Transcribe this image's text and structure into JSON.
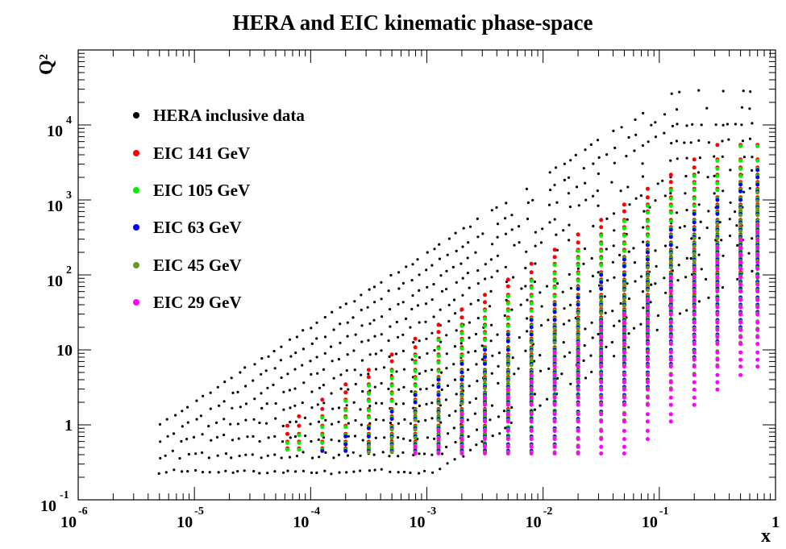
{
  "chart_data": {
    "type": "scatter",
    "title": "HERA and EIC kinematic phase-space",
    "xlabel": "x",
    "ylabel": "Q²",
    "x_scale": "log",
    "y_scale": "log",
    "xlim": [
      1e-06,
      1
    ],
    "ylim": [
      0.1,
      100000
    ],
    "x_ticks": [
      {
        "value": 1e-06,
        "base": "10",
        "exp": "-6"
      },
      {
        "value": 1e-05,
        "base": "10",
        "exp": "-5"
      },
      {
        "value": 0.0001,
        "base": "10",
        "exp": "-4"
      },
      {
        "value": 0.001,
        "base": "10",
        "exp": "-3"
      },
      {
        "value": 0.01,
        "base": "10",
        "exp": "-2"
      },
      {
        "value": 0.1,
        "base": "10",
        "exp": "-1"
      },
      {
        "value": 1,
        "base": "1",
        "exp": ""
      }
    ],
    "y_ticks": [
      {
        "value": 0.1,
        "base": "10",
        "exp": "-1"
      },
      {
        "value": 1,
        "base": "1",
        "exp": ""
      },
      {
        "value": 10,
        "base": "10",
        "exp": ""
      },
      {
        "value": 100,
        "base": "10",
        "exp": "2"
      },
      {
        "value": 1000,
        "base": "10",
        "exp": "3"
      },
      {
        "value": 10000,
        "base": "10",
        "exp": "4"
      }
    ],
    "legend_position": "top-left",
    "series": [
      {
        "name": "HERA inclusive data",
        "color": "#000000",
        "marker": "small-dot",
        "x_range": [
          5e-06,
          0.65
        ],
        "q2_min": 0.15,
        "q2_max": 30000,
        "points_note": "dense scatter bounded above by Q2 = 2e5*x approximately"
      },
      {
        "name": "EIC 141 GeV",
        "color": "#ff0000",
        "sqrt_s": 141
      },
      {
        "name": "EIC 105 GeV",
        "color": "#00ee00",
        "sqrt_s": 105
      },
      {
        "name": "EIC 63 GeV",
        "color": "#0000ff",
        "sqrt_s": 63
      },
      {
        "name": "EIC 45 GeV",
        "color": "#669922",
        "sqrt_s": 45
      },
      {
        "name": "EIC 29 GeV",
        "color": "#ff00ff",
        "sqrt_s": 29
      }
    ],
    "eic_grid": {
      "x_bins": [
        6.31e-05,
        7.94e-05,
        0.000126,
        0.0002,
        0.000316,
        0.0005,
        0.000794,
        0.00126,
        0.002,
        0.00316,
        0.005,
        0.00794,
        0.0126,
        0.02,
        0.0316,
        0.05,
        0.0794,
        0.126,
        0.2,
        0.316,
        0.5,
        0.7
      ],
      "q2_bins": [
        0.45,
        0.55,
        0.7,
        0.9,
        1.2,
        1.5,
        2,
        2.5,
        3.2,
        4,
        5,
        6.5,
        8,
        10,
        13,
        16,
        20,
        25,
        32,
        40,
        50,
        65,
        80,
        100,
        130,
        160,
        200,
        250,
        320,
        400,
        500,
        650,
        800,
        1000,
        1300,
        1600,
        2000,
        2500,
        3200,
        5000
      ],
      "y_max": 0.95,
      "y_min": 0.01
    }
  },
  "legend": {
    "items": [
      {
        "label": "HERA inclusive data",
        "color": "#000000"
      },
      {
        "label": "EIC 141 GeV",
        "color": "#ff0000"
      },
      {
        "label": "EIC 105 GeV",
        "color": "#00ee00"
      },
      {
        "label": "EIC 63 GeV",
        "color": "#0000ff"
      },
      {
        "label": "EIC 45 GeV",
        "color": "#669922"
      },
      {
        "label": "EIC 29 GeV",
        "color": "#ff00ff"
      }
    ]
  }
}
